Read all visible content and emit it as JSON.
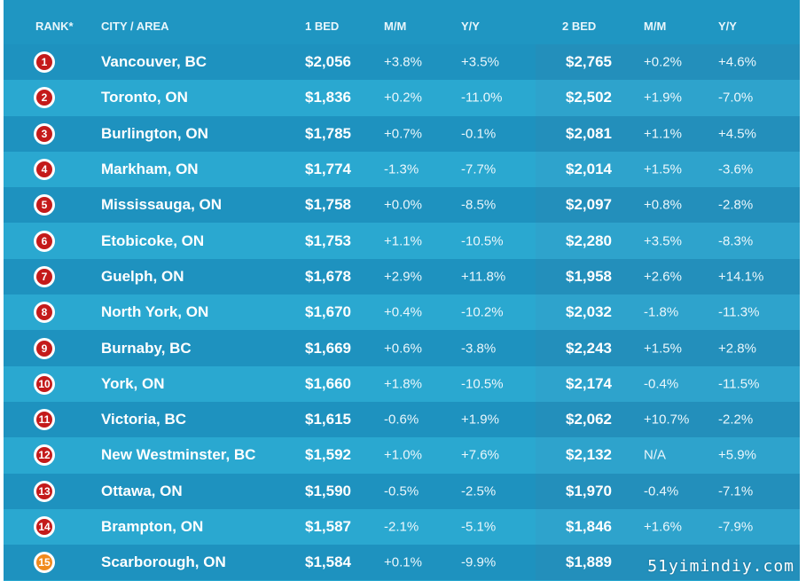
{
  "header": {
    "rank": "RANK*",
    "city": "CITY / AREA",
    "one_bed": "1 BED",
    "mm1": "M/M",
    "yy1": "Y/Y",
    "two_bed": "2 BED",
    "mm2": "M/M",
    "yy2": "Y/Y"
  },
  "rows": [
    {
      "rank": "1",
      "city": "Vancouver, BC",
      "one_bed": "$2,056",
      "one_mm": "+3.8%",
      "one_yy": "+3.5%",
      "two_bed": "$2,765",
      "two_mm": "+0.2%",
      "two_yy": "+4.6%"
    },
    {
      "rank": "2",
      "city": "Toronto, ON",
      "one_bed": "$1,836",
      "one_mm": "+0.2%",
      "one_yy": "-11.0%",
      "two_bed": "$2,502",
      "two_mm": "+1.9%",
      "two_yy": "-7.0%"
    },
    {
      "rank": "3",
      "city": "Burlington, ON",
      "one_bed": "$1,785",
      "one_mm": "+0.7%",
      "one_yy": "-0.1%",
      "two_bed": "$2,081",
      "two_mm": "+1.1%",
      "two_yy": "+4.5%"
    },
    {
      "rank": "4",
      "city": "Markham, ON",
      "one_bed": "$1,774",
      "one_mm": "-1.3%",
      "one_yy": "-7.7%",
      "two_bed": "$2,014",
      "two_mm": "+1.5%",
      "two_yy": "-3.6%"
    },
    {
      "rank": "5",
      "city": "Mississauga, ON",
      "one_bed": "$1,758",
      "one_mm": "+0.0%",
      "one_yy": "-8.5%",
      "two_bed": "$2,097",
      "two_mm": "+0.8%",
      "two_yy": "-2.8%"
    },
    {
      "rank": "6",
      "city": "Etobicoke, ON",
      "one_bed": "$1,753",
      "one_mm": "+1.1%",
      "one_yy": "-10.5%",
      "two_bed": "$2,280",
      "two_mm": "+3.5%",
      "two_yy": "-8.3%"
    },
    {
      "rank": "7",
      "city": "Guelph, ON",
      "one_bed": "$1,678",
      "one_mm": "+2.9%",
      "one_yy": "+11.8%",
      "two_bed": "$1,958",
      "two_mm": "+2.6%",
      "two_yy": "+14.1%"
    },
    {
      "rank": "8",
      "city": "North York, ON",
      "one_bed": "$1,670",
      "one_mm": "+0.4%",
      "one_yy": "-10.2%",
      "two_bed": "$2,032",
      "two_mm": "-1.8%",
      "two_yy": "-11.3%"
    },
    {
      "rank": "9",
      "city": "Burnaby, BC",
      "one_bed": "$1,669",
      "one_mm": "+0.6%",
      "one_yy": "-3.8%",
      "two_bed": "$2,243",
      "two_mm": "+1.5%",
      "two_yy": "+2.8%"
    },
    {
      "rank": "10",
      "city": "York, ON",
      "one_bed": "$1,660",
      "one_mm": "+1.8%",
      "one_yy": "-10.5%",
      "two_bed": "$2,174",
      "two_mm": "-0.4%",
      "two_yy": "-11.5%"
    },
    {
      "rank": "11",
      "city": "Victoria, BC",
      "one_bed": "$1,615",
      "one_mm": "-0.6%",
      "one_yy": "+1.9%",
      "two_bed": "$2,062",
      "two_mm": "+10.7%",
      "two_yy": "-2.2%"
    },
    {
      "rank": "12",
      "city": "New Westminster, BC",
      "one_bed": "$1,592",
      "one_mm": "+1.0%",
      "one_yy": "+7.6%",
      "two_bed": "$2,132",
      "two_mm": "N/A",
      "two_yy": "+5.9%"
    },
    {
      "rank": "13",
      "city": "Ottawa, ON",
      "one_bed": "$1,590",
      "one_mm": "-0.5%",
      "one_yy": "-2.5%",
      "two_bed": "$1,970",
      "two_mm": "-0.4%",
      "two_yy": "-7.1%"
    },
    {
      "rank": "14",
      "city": "Brampton, ON",
      "one_bed": "$1,587",
      "one_mm": "-2.1%",
      "one_yy": "-5.1%",
      "two_bed": "$1,846",
      "two_mm": "+1.6%",
      "two_yy": "-7.9%"
    },
    {
      "rank": "15",
      "city": "Scarborough, ON",
      "one_bed": "$1,584",
      "one_mm": "+0.1%",
      "one_yy": "-9.9%",
      "two_bed": "$1,889",
      "two_mm": "",
      "two_yy": ""
    }
  ],
  "colors": {
    "badge_red": "#c41a1a",
    "badge_orange": "#f08a1e"
  },
  "watermark": "51yimindiy.com"
}
